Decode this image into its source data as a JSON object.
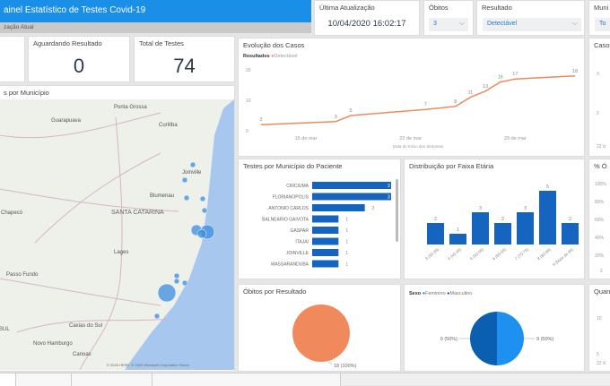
{
  "header": {
    "title": "ainel Estatístico de Testes Covid-19",
    "subtitle": "zação Atual",
    "brand_color": "#1a8fe8"
  },
  "kpis": [
    {
      "label": "Aguardando Resultado",
      "value": "0"
    },
    {
      "label": "Total de Testes",
      "value": "74"
    }
  ],
  "last_update": {
    "label": "Última Atualização",
    "value": "10/04/2020 16:02:17"
  },
  "filters": {
    "obitos": {
      "label": "Óbitos",
      "value": "3"
    },
    "resultado": {
      "label": "Resultado",
      "value": "Detectável"
    },
    "municipio": {
      "label": "Muni",
      "value": "To"
    }
  },
  "map": {
    "title": "s por Município",
    "labels": [
      "Ponta Grossa",
      "Guarapuava",
      "Curitiba",
      "Joinville",
      "Blumenau",
      "SANTA CATARINA",
      "Chapecó",
      "Lages",
      "Passo Fundo",
      "Caxias do Sul",
      "Novo Hamburgo",
      "Canoas",
      "SUL"
    ],
    "attribution": "© 2020 HERE, © 2020 Microsoft Corporation  Terms"
  },
  "chart_data": [
    {
      "type": "line",
      "title": "Evolução dos Casos",
      "legend_title": "Resultados",
      "series": [
        {
          "name": "Detectável",
          "color": "#f08a5d",
          "x": [
            "12 de mar",
            "17 de mar",
            "18 de mar",
            "23 de mar",
            "25 de mar",
            "26 de mar",
            "27 de mar",
            "28 de mar",
            "29 de mar",
            "2 de abr"
          ],
          "values": [
            2,
            3,
            5,
            7,
            8,
            11,
            13,
            16,
            17,
            18
          ]
        }
      ],
      "x_ticks": [
        "15 de mar",
        "22 de mar",
        "29 de mar"
      ],
      "y_ticks": [
        0,
        10,
        20
      ],
      "ylim": [
        0,
        20
      ],
      "xlabel": "Data do Início dos Sintomas"
    },
    {
      "type": "bar",
      "orientation": "horizontal",
      "title": "Testes por Município do Paciente",
      "categories": [
        "CRICIUMA",
        "FLORIANOPOLIS",
        "ANTONIO CARLOS",
        "BALNEARIO GAIVOTA",
        "GASPAR",
        "ITAJAI",
        "JOINVILLE",
        "MASSARANDUBA"
      ],
      "values": [
        3,
        3,
        2,
        1,
        1,
        1,
        1,
        1
      ],
      "color": "#1565c0"
    },
    {
      "type": "bar",
      "title": "Distribuição por Faixa Etária",
      "categories": [
        "3 (30-39)",
        "4 (40-49)",
        "5 (50-59)",
        "6 (60-69)",
        "7 (70-79)",
        "8 (80-89)",
        "9 (Mais de 89)"
      ],
      "values": [
        2,
        1,
        3,
        2,
        3,
        5,
        2
      ],
      "color": "#1565c0"
    },
    {
      "type": "pie",
      "title": "Óbitos por Resultado",
      "slices": [
        {
          "label": "18 (100%)",
          "value": 18,
          "color": "#f08a5d"
        }
      ]
    },
    {
      "type": "pie",
      "title": "",
      "legend_title": "Sexo",
      "slices": [
        {
          "name": "Feminino",
          "label": "9 (50%)",
          "value": 9,
          "color": "#1e90f0"
        },
        {
          "name": "Masculino",
          "label": "9 (50%)",
          "value": 9,
          "color": "#0b5fb0"
        }
      ]
    }
  ],
  "right_panels": {
    "casos": {
      "title": "Casos",
      "ticks": [
        "3",
        "2",
        "1"
      ],
      "x": "22 d"
    },
    "pct": {
      "title": "% Ó",
      "ticks": [
        "100%",
        "80%",
        "60%",
        "40%",
        "20%"
      ],
      "x": "2"
    },
    "qua": {
      "title": "Quan",
      "ticks": [
        "10",
        "5"
      ],
      "x": "22 d"
    }
  }
}
